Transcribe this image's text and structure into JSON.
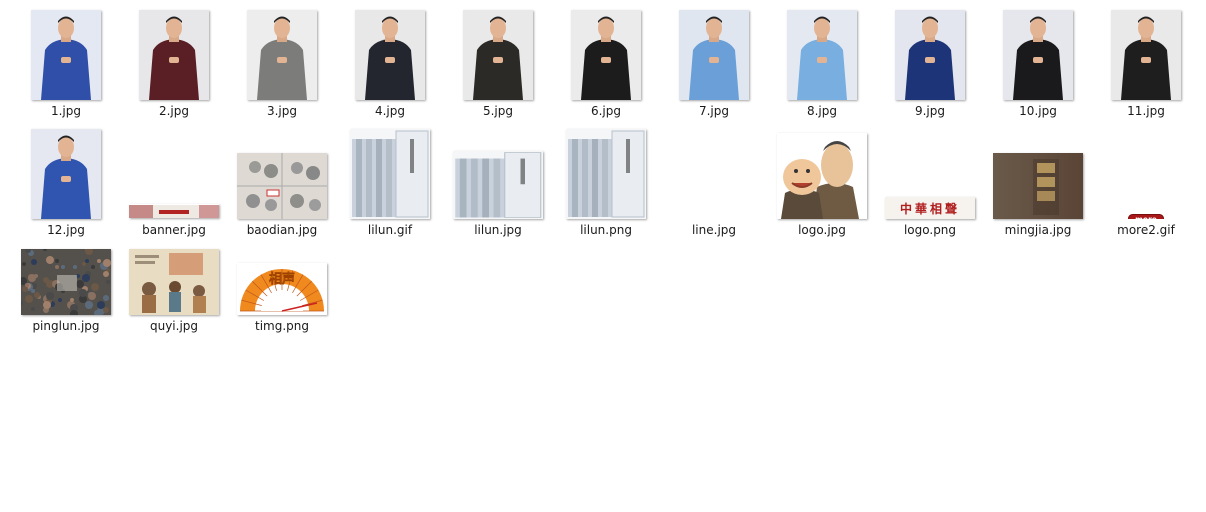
{
  "files": [
    {
      "name": "1.jpg",
      "kind": "portrait",
      "bg": "#e4e8f2",
      "robe": "#2f4fa8",
      "icon": "image-file-icon"
    },
    {
      "name": "2.jpg",
      "kind": "portrait",
      "bg": "#e7e7ea",
      "robe": "#5a1e25",
      "icon": "image-file-icon"
    },
    {
      "name": "3.jpg",
      "kind": "portrait",
      "bg": "#ededed",
      "robe": "#7c7c7a",
      "icon": "image-file-icon"
    },
    {
      "name": "4.jpg",
      "kind": "portrait",
      "bg": "#e8e8e8",
      "robe": "#23262e",
      "icon": "image-file-icon"
    },
    {
      "name": "5.jpg",
      "kind": "portrait",
      "bg": "#e9e9e9",
      "robe": "#2c2a26",
      "icon": "image-file-icon"
    },
    {
      "name": "6.jpg",
      "kind": "portrait",
      "bg": "#ebebeb",
      "robe": "#1c1c1c",
      "icon": "image-file-icon"
    },
    {
      "name": "7.jpg",
      "kind": "portrait",
      "bg": "#dfe6f0",
      "robe": "#6a9fd8",
      "icon": "image-file-icon"
    },
    {
      "name": "8.jpg",
      "kind": "portrait",
      "bg": "#e4e9f1",
      "robe": "#78aee0",
      "icon": "image-file-icon"
    },
    {
      "name": "9.jpg",
      "kind": "portrait",
      "bg": "#e3e6ee",
      "robe": "#1e3478",
      "icon": "image-file-icon"
    },
    {
      "name": "10.jpg",
      "kind": "portrait",
      "bg": "#e6e7ec",
      "robe": "#1a1a1d",
      "icon": "image-file-icon"
    },
    {
      "name": "11.jpg",
      "kind": "portrait",
      "bg": "#e9e9e9",
      "robe": "#1e1e1e",
      "icon": "image-file-icon"
    },
    {
      "name": "12.jpg",
      "kind": "portrait",
      "bg": "#e5e8f1",
      "robe": "#2f55b0",
      "icon": "image-file-icon"
    },
    {
      "name": "banner.jpg",
      "kind": "banner",
      "icon": "image-file-icon"
    },
    {
      "name": "baodian.jpg",
      "kind": "comic",
      "icon": "image-file-icon"
    },
    {
      "name": "lilun.gif",
      "kind": "books",
      "icon": "image-file-icon"
    },
    {
      "name": "lilun.jpg",
      "kind": "books",
      "icon": "image-file-icon"
    },
    {
      "name": "lilun.png",
      "kind": "books",
      "icon": "image-file-icon"
    },
    {
      "name": "line.jpg",
      "kind": "line",
      "icon": "image-file-icon"
    },
    {
      "name": "logo.jpg",
      "kind": "cartoon",
      "icon": "image-file-icon"
    },
    {
      "name": "logo.png",
      "kind": "logotext",
      "logo_text": "中華相聲",
      "icon": "image-file-icon"
    },
    {
      "name": "mingjia.jpg",
      "kind": "mingjia",
      "icon": "image-file-icon"
    },
    {
      "name": "more2.gif",
      "kind": "more",
      "more_text": "more",
      "icon": "image-file-icon"
    },
    {
      "name": "pinglun.jpg",
      "kind": "crowd",
      "icon": "image-file-icon"
    },
    {
      "name": "quyi.jpg",
      "kind": "painting",
      "icon": "image-file-icon"
    },
    {
      "name": "timg.png",
      "kind": "fan",
      "fan_text": "相声",
      "icon": "image-file-icon"
    }
  ]
}
